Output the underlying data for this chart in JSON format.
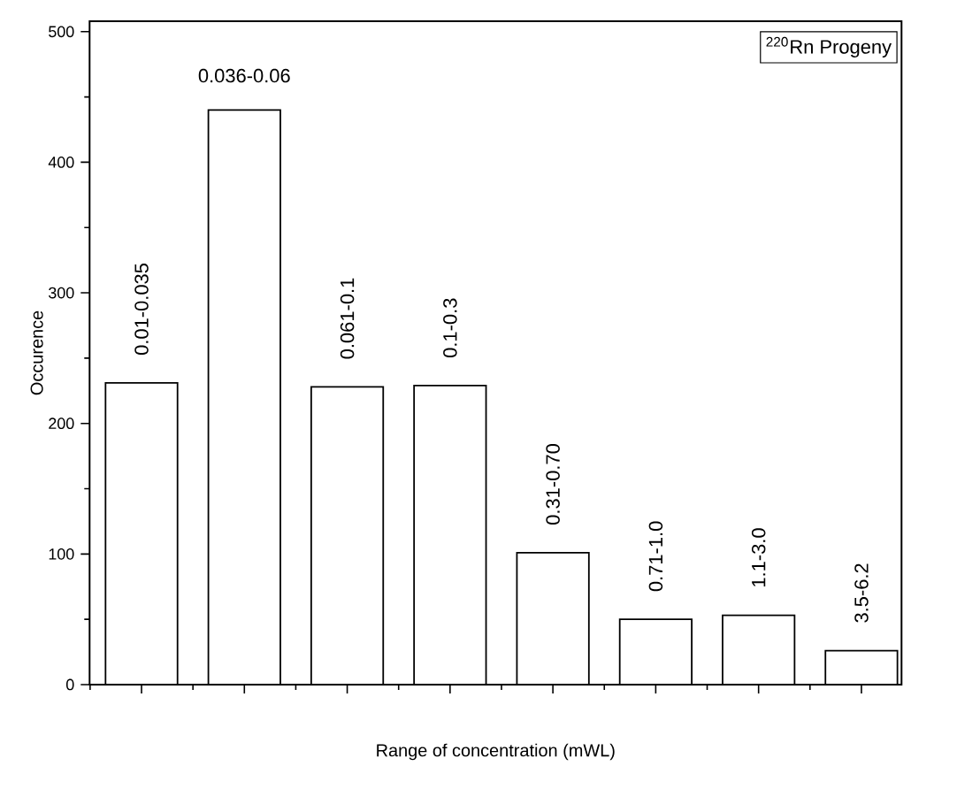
{
  "chart_data": {
    "type": "bar",
    "xlabel": "Range of concentration (mWL)",
    "ylabel": "Occurence",
    "categories": [
      "0.01-0.035",
      "0.036-0.06",
      "0.061-0.1",
      "0.1-0.3",
      "0.31-0.70",
      "0.71-1.0",
      "1.1-3.0",
      "3.5-6.2"
    ],
    "values": [
      231,
      440,
      228,
      229,
      101,
      50,
      53,
      26
    ],
    "color": "#ffffff",
    "ylim": [
      0,
      508
    ],
    "yticks": [
      0,
      100,
      200,
      300,
      400,
      500
    ],
    "tick_labels": "y",
    "grid": false,
    "annotations": [
      "$^{220}$Rn Progeny"
    ]
  }
}
